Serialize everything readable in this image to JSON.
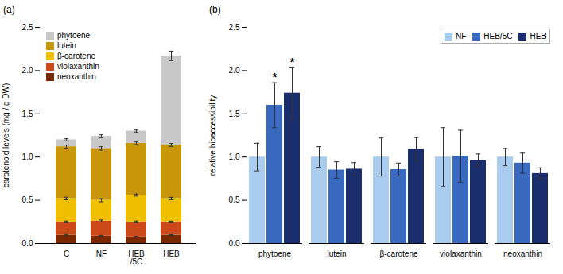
{
  "chart_data": [
    {
      "type": "bar",
      "title": "(a)",
      "stacked": true,
      "categories": [
        "C",
        "NF",
        "HEB\n/5C",
        "HEB"
      ],
      "series": [
        {
          "name": "neoxanthin",
          "color": "#7a2800",
          "values": [
            0.095,
            0.085,
            0.075,
            0.095
          ],
          "errors": [
            0.008,
            0.008,
            0.006,
            0.007
          ]
        },
        {
          "name": "violaxanthin",
          "color": "#cc4a1a",
          "values": [
            0.155,
            0.175,
            0.175,
            0.155
          ],
          "errors": [
            0.01,
            0.012,
            0.01,
            0.009
          ]
        },
        {
          "name": "β-carotene",
          "color": "#f0c000",
          "values": [
            0.27,
            0.24,
            0.31,
            0.27
          ],
          "errors": [
            0.015,
            0.018,
            0.012,
            0.014
          ]
        },
        {
          "name": "lutein",
          "color": "#c8960a",
          "values": [
            0.6,
            0.6,
            0.6,
            0.62
          ],
          "errors": [
            0.018,
            0.02,
            0.015,
            0.017
          ]
        },
        {
          "name": "phytoene",
          "color": "#c8c8c8",
          "values": [
            0.08,
            0.14,
            0.14,
            1.03
          ],
          "errors": [
            0.012,
            0.018,
            0.012,
            0.055
          ]
        }
      ],
      "ylabel": "carotenoid levels (mg / g DW)",
      "ylim": [
        0,
        2.5
      ],
      "yticks": [
        {
          "value": 0,
          "label": "0.0"
        },
        0.5,
        {
          "value": 1,
          "label": "1.0"
        },
        1.5,
        {
          "value": 2,
          "label": "2.0"
        },
        2.5
      ],
      "legend": "upper left"
    },
    {
      "type": "bar",
      "title": "(b)",
      "stacked": false,
      "categories": [
        "phytoene",
        "lutein",
        "β-carotene",
        "violaxanthin",
        "neoxanthin"
      ],
      "series": [
        {
          "name": "NF",
          "color": "#aaccee",
          "values": [
            1.0,
            1.0,
            1.0,
            1.0,
            1.0
          ],
          "errors": [
            0.16,
            0.12,
            0.22,
            0.34,
            0.1
          ]
        },
        {
          "name": "HEB/5C",
          "color": "#3a6abf",
          "values": [
            1.6,
            0.85,
            0.855,
            1.01,
            0.93
          ],
          "errors": [
            0.26,
            0.095,
            0.075,
            0.3,
            0.115
          ]
        },
        {
          "name": "HEB",
          "color": "#1a2e6e",
          "values": [
            1.74,
            0.86,
            1.09,
            0.96,
            0.81
          ],
          "errors": [
            0.3,
            0.075,
            0.135,
            0.075,
            0.065
          ]
        }
      ],
      "annotations": [
        {
          "text": "*",
          "category": "phytoene",
          "series": "HEB/5C"
        },
        {
          "text": "*",
          "category": "phytoene",
          "series": "HEB"
        }
      ],
      "ylabel": "relative bioaccessibility",
      "ylim": [
        0,
        2.5
      ],
      "yticks": [
        {
          "value": 0,
          "label": "0.0"
        },
        0.5,
        {
          "value": 1,
          "label": "1.0"
        },
        1.5,
        {
          "value": 2,
          "label": "2.0"
        },
        2.5
      ],
      "legend": "upper right"
    }
  ]
}
